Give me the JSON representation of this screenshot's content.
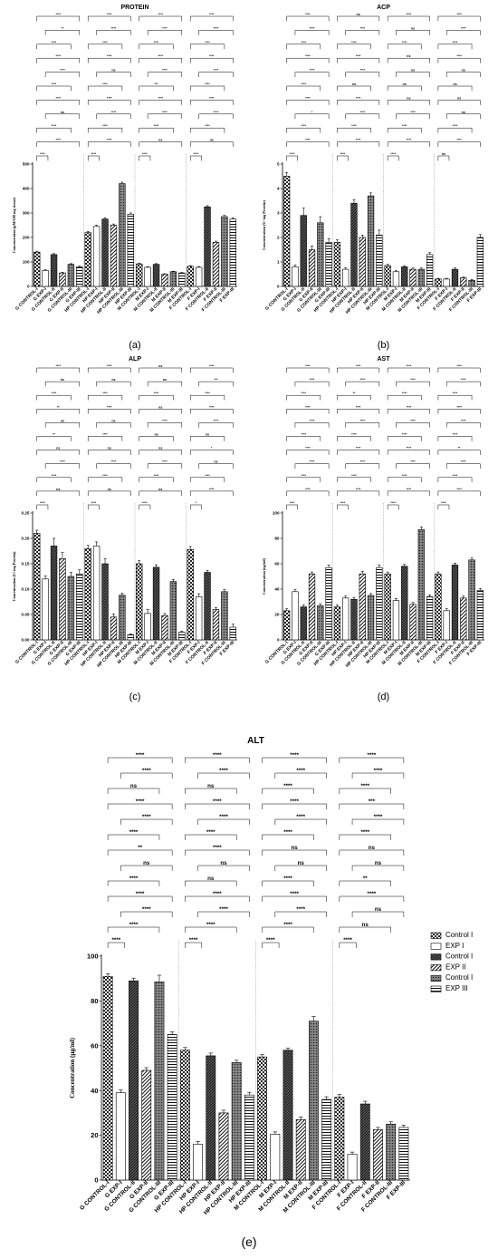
{
  "patterns": [
    {
      "name": "checker",
      "fill": "#4a4a4a"
    },
    {
      "name": "blank",
      "fill": "#ffffff"
    },
    {
      "name": "dense",
      "fill": "#5a5a5a"
    },
    {
      "name": "diag",
      "fill": "#ffffff"
    },
    {
      "name": "dots",
      "fill": "#707070"
    },
    {
      "name": "hlines",
      "fill": "#ffffff"
    }
  ],
  "legend": [
    {
      "label": "Control I",
      "pattern": "checker"
    },
    {
      "label": "EXP I",
      "pattern": "blank"
    },
    {
      "label": "Control I",
      "pattern": "dense"
    },
    {
      "label": "EXP II",
      "pattern": "diag"
    },
    {
      "label": "Control I",
      "pattern": "dots"
    },
    {
      "label": "EXP III",
      "pattern": "hlines"
    }
  ],
  "chart_data": [
    {
      "type": "bar",
      "title": "PROTEIN",
      "panel_label": "(a)",
      "ylabel": "Concentration (µM/100 mg tissue)",
      "ylim": [
        0,
        500
      ],
      "yticks": [
        "0",
        "100",
        "200",
        "300",
        "400",
        "500"
      ],
      "categories": [
        "G CONTROL-I",
        "G EXP-I",
        "G CONTROL-II",
        "G EXP-II",
        "G CONTROL-III",
        "G EXP-III",
        "HP CONTROL-I",
        "HP EXP-I",
        "HP CONTROL-II",
        "HP EXP-II",
        "HP CONTROL-III",
        "HP EXP-III",
        "M CONTROL-I",
        "M EXP-I",
        "M CONTROL-II",
        "M EXP-II",
        "M CONTROL-III",
        "M EXP-III",
        "F CONTROL-I",
        "F EXP-I",
        "F CONTROL-II",
        "F EXP-II",
        "F CONTROL-III",
        "F EXP-III"
      ],
      "values": [
        140,
        65,
        130,
        55,
        90,
        80,
        220,
        245,
        275,
        250,
        420,
        295,
        92,
        78,
        90,
        50,
        60,
        55,
        82,
        78,
        325,
        180,
        285,
        275
      ],
      "errors": [
        4,
        3,
        4,
        3,
        3,
        3,
        5,
        5,
        5,
        5,
        6,
        5,
        3,
        3,
        3,
        2,
        2,
        2,
        3,
        3,
        5,
        5,
        5,
        5
      ],
      "sig": [
        [
          "****",
          "**",
          "****",
          "****",
          "****",
          "****",
          "****",
          "ns",
          "****",
          "****",
          "****"
        ],
        [
          "****",
          "****",
          "****",
          "****",
          "ns",
          "****",
          "****",
          "****",
          "****",
          "****",
          "****"
        ],
        [
          "****",
          "****",
          "****",
          "****",
          "****",
          "***",
          "****",
          "****",
          "****",
          "ns",
          "****"
        ],
        [
          "****",
          "****",
          "****",
          "****",
          "****",
          "****",
          "****",
          "****",
          "****",
          "ns",
          "****"
        ]
      ]
    },
    {
      "type": "bar",
      "title": "ACP",
      "panel_label": "(b)",
      "ylabel": "Concentration (U/ mg Protein)",
      "ylim": [
        0,
        5
      ],
      "yticks": [
        "0",
        "1",
        "2",
        "3",
        "4",
        "5"
      ],
      "categories": [
        "G CONTROL-I",
        "G EXP-I",
        "G CONTROL-II",
        "G EXP-II",
        "G CONTROL-III",
        "G EXP-III",
        "HP CONTROL-I",
        "HP EXP-I",
        "HP CONTROL-II",
        "HP EXP-II",
        "HP CONTROL-III",
        "HP EXP-III",
        "M CONTROL-I",
        "M EXP-I",
        "M CONTROL-II",
        "M EXP-II",
        "M CONTROL-III",
        "M EXP-III",
        "F CONTROL-I",
        "F EXP-I",
        "F CONTROL-II",
        "F EXP-II",
        "F CONTROL-III",
        "F EXP-III"
      ],
      "values": [
        4.5,
        0.8,
        2.9,
        1.5,
        2.6,
        1.8,
        1.8,
        0.7,
        3.4,
        2.0,
        3.7,
        2.1,
        0.85,
        0.6,
        0.8,
        0.7,
        0.7,
        1.3,
        0.3,
        0.3,
        0.7,
        0.35,
        0.25,
        2.0
      ],
      "errors": [
        0.15,
        0.08,
        0.3,
        0.15,
        0.25,
        0.15,
        0.1,
        0.06,
        0.15,
        0.1,
        0.12,
        0.2,
        0.05,
        0.04,
        0.05,
        0.05,
        0.05,
        0.08,
        0.03,
        0.03,
        0.05,
        0.03,
        0.03,
        0.12
      ],
      "sig": [
        [
          "****",
          "****",
          "****",
          "****",
          "****",
          "****",
          "****",
          "*",
          "****",
          "****",
          "****"
        ],
        [
          "ns",
          "****",
          "****",
          "****",
          "****",
          "ns",
          "****",
          "****",
          "****",
          "****",
          "****"
        ],
        [
          "****",
          "ns",
          "****",
          "ns",
          "ns",
          "ns",
          "ns",
          "****",
          "****",
          "****",
          "****"
        ],
        [
          "****",
          "****",
          "****",
          "****",
          "ns",
          "ns",
          "ns",
          "ns",
          "****",
          "****",
          "ns"
        ]
      ]
    },
    {
      "type": "bar",
      "title": "ALP",
      "panel_label": "(c)",
      "ylabel": "Concentration (U/ mg Protein)",
      "ylim": [
        0,
        0.25
      ],
      "yticks": [
        "0.00",
        "0.05",
        "0.10",
        "0.15",
        "0.20",
        "0.25"
      ],
      "categories": [
        "G CONTROL-I",
        "G EXP-I",
        "G CONTROL-II",
        "G EXP-II",
        "G CONTROL-III",
        "G EXP-III",
        "HP CONTROL-I",
        "HP EXP-I",
        "HP CONTROL-II",
        "HP EXP-II",
        "HP CONTROL-III",
        "HP EXP-III",
        "M CONTROL-I",
        "M EXP-I",
        "M CONTROL-II",
        "M EXP-II",
        "M CONTROL-III",
        "M EXP-III",
        "F CONTROL-I",
        "F EXP-I",
        "F CONTROL-II",
        "F EXP-II",
        "F CONTROL-III",
        "F EXP-III"
      ],
      "values": [
        0.21,
        0.12,
        0.185,
        0.16,
        0.125,
        0.13,
        0.18,
        0.185,
        0.15,
        0.045,
        0.088,
        0.01,
        0.15,
        0.052,
        0.143,
        0.048,
        0.115,
        0.015,
        0.178,
        0.085,
        0.133,
        0.06,
        0.095,
        0.025
      ],
      "errors": [
        0.006,
        0.006,
        0.015,
        0.012,
        0.008,
        0.008,
        0.006,
        0.008,
        0.01,
        0.006,
        0.004,
        0.002,
        0.006,
        0.008,
        0.005,
        0.004,
        0.004,
        0.002,
        0.006,
        0.006,
        0.004,
        0.004,
        0.004,
        0.006
      ],
      "sig": [
        [
          "****",
          "ns",
          "****",
          "**",
          "ns",
          "**",
          "ns",
          "****",
          "****",
          "ns",
          "****"
        ],
        [
          "****",
          "ns",
          "****",
          "****",
          "ns",
          "****",
          "ns",
          "****",
          "****",
          "ns",
          "****"
        ],
        [
          "ns",
          "ns",
          "****",
          "ns",
          "****",
          "ns",
          "ns",
          "****",
          "****",
          "ns",
          "****"
        ],
        [
          "****",
          "***",
          "****",
          "****",
          "****",
          "ns",
          "*",
          "ns",
          "****",
          "****",
          "*"
        ]
      ]
    },
    {
      "type": "bar",
      "title": "AST",
      "panel_label": "(d)",
      "ylabel": "Concentration (ng/ml)",
      "ylim": [
        0,
        100
      ],
      "yticks": [
        "0",
        "20",
        "40",
        "60",
        "80",
        "100"
      ],
      "categories": [
        "G CONTROL-I",
        "G EXP-I",
        "G CONTROL-II",
        "G EXP-II",
        "G CONTROL-III",
        "G EXP-III",
        "HP CONTROL-I",
        "HP EXP-I",
        "HP CONTROL-II",
        "HP EXP-II",
        "HP CONTROL-III",
        "HP EXP-III",
        "M CONTROL-I",
        "M EXP-I",
        "M CONTROL-II",
        "M EXP-II",
        "M CONTROL-III",
        "M EXP-III",
        "F CONTROL-I",
        "F EXP-I",
        "F CONTROL-II",
        "F EXP-II",
        "F CONTROL-III",
        "F EXP-III"
      ],
      "values": [
        23,
        38,
        26,
        52,
        27,
        57,
        26,
        33,
        32,
        52,
        35,
        57,
        52,
        31,
        58,
        28,
        87,
        34,
        52,
        23,
        59,
        33,
        63,
        39
      ],
      "errors": [
        1.5,
        1.5,
        1.5,
        1.5,
        1.5,
        2,
        1.5,
        1.5,
        1.5,
        2,
        1.5,
        2,
        1.5,
        1.5,
        1.5,
        1.5,
        2,
        1.5,
        1.5,
        1.5,
        1.5,
        1.5,
        1.5,
        1.5
      ],
      "sig": [
        [
          "****",
          "****",
          "****",
          "****",
          "****",
          "****",
          "****",
          "****",
          "****",
          "****",
          "****"
        ],
        [
          "****",
          "****",
          "**",
          "****",
          "****",
          "****",
          "****",
          "****",
          "****",
          "****",
          "****"
        ],
        [
          "****",
          "****",
          "****",
          "****",
          "****",
          "****",
          "****",
          "****",
          "****",
          "****",
          "****"
        ],
        [
          "****",
          "****",
          "****",
          "****",
          "****",
          "****",
          "**",
          "****",
          "****",
          "****",
          "****"
        ]
      ]
    },
    {
      "type": "bar",
      "title": "ALT",
      "panel_label": "(e)",
      "ylabel": "Concentration (µg/ml)",
      "ylim": [
        0,
        100
      ],
      "yticks": [
        "0",
        "20",
        "40",
        "60",
        "80",
        "100"
      ],
      "categories": [
        "G CONTROL-I",
        "G EXP-I",
        "G CONTROL-II",
        "G EXP-II",
        "G CONTROL-III",
        "G EXP-III",
        "HP CONTROL-I",
        "HP EXP-I",
        "HP CONTROL-II",
        "HP EXP-II",
        "HP CONTROL-III",
        "HP EXP-III",
        "M CONTROL-I",
        "M EXP-I",
        "M CONTROL-II",
        "M EXP-II",
        "M CONTROL-III",
        "M EXP-III",
        "F CONTROL-I",
        "F EXP-I",
        "F CONTROL-II",
        "F EXP-II",
        "F CONTROL-III",
        "F EXP-III"
      ],
      "values": [
        91,
        39,
        89,
        49,
        88.5,
        65,
        58,
        16,
        55.5,
        30,
        52.5,
        38,
        55,
        20.5,
        58,
        27,
        71,
        36,
        37,
        11.5,
        34,
        22.5,
        25,
        23.5
      ],
      "errors": [
        1.2,
        1.2,
        1.2,
        1.2,
        3,
        1.2,
        1.2,
        1.2,
        1.2,
        1.2,
        1,
        1.2,
        1,
        1,
        1,
        1.2,
        2,
        1.2,
        1.2,
        1,
        1.2,
        1,
        1,
        1
      ],
      "sig": [
        [
          "****",
          "****",
          "ns",
          "****",
          "****",
          "****",
          "**",
          "ns",
          "****",
          "****",
          "****",
          "****",
          "****"
        ],
        [
          "****",
          "****",
          "ns",
          "****",
          "****",
          "****",
          "****",
          "ns",
          "ns",
          "****",
          "****",
          "****",
          "****"
        ],
        [
          "****",
          "****",
          "****",
          "****",
          "****",
          "****",
          "ns",
          "ns",
          "****",
          "****",
          "****",
          "****",
          "****"
        ],
        [
          "****",
          "****",
          "****",
          "***",
          "****",
          "****",
          "ns",
          "ns",
          "**",
          "****",
          "ns",
          "ns",
          "****"
        ]
      ]
    }
  ]
}
